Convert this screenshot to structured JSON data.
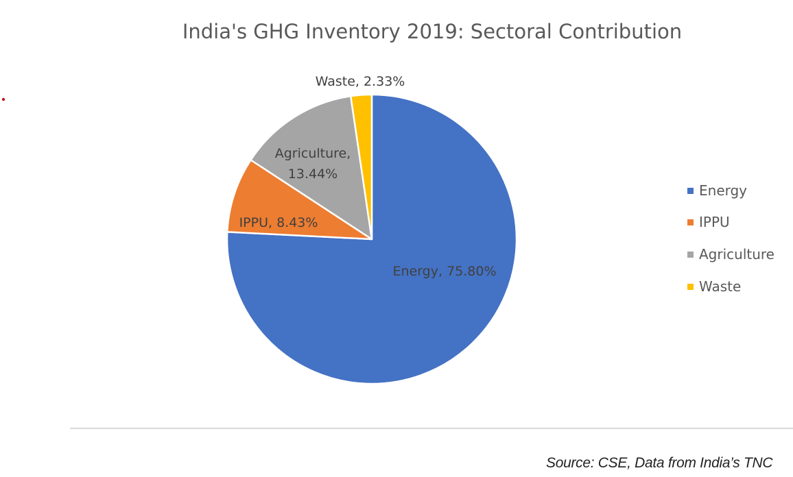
{
  "chart_data": {
    "type": "pie",
    "title": "India's GHG Inventory 2019: Sectoral Contribution",
    "slices": [
      {
        "name": "Energy",
        "value": 75.8,
        "label": "Energy, 75.80%",
        "color": "#4472C4"
      },
      {
        "name": "IPPU",
        "value": 8.43,
        "label": "IPPU, 8.43%",
        "color": "#ED7D31"
      },
      {
        "name": "Agriculture",
        "value": 13.44,
        "label_lines": [
          "Agriculture,",
          "13.44%"
        ],
        "color": "#A5A5A5"
      },
      {
        "name": "Waste",
        "value": 2.33,
        "label": "Waste, 2.33%",
        "color": "#FFC000"
      }
    ],
    "legend": {
      "position": "right",
      "items": [
        "Energy",
        "IPPU",
        "Agriculture",
        "Waste"
      ]
    }
  },
  "source": "Source: CSE, Data from India’s TNC"
}
